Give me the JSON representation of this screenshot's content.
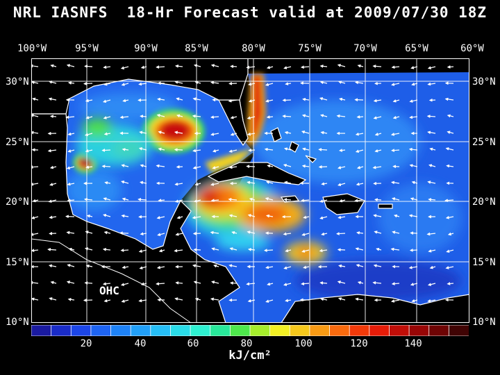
{
  "title": "NRL IASNFS  18-Hr Forecast valid at 2009/07/30 18Z",
  "longitude_labels": [
    "100°W",
    "95°W",
    "90°W",
    "85°W",
    "80°W",
    "75°W",
    "70°W",
    "65°W",
    "60°W"
  ],
  "latitude_labels": [
    "30°N",
    "25°N",
    "20°N",
    "15°N",
    "10°N"
  ],
  "map_label": "OHC",
  "colorbar": {
    "tick_labels": [
      "20",
      "40",
      "60",
      "80",
      "100",
      "120",
      "140"
    ],
    "units": "kJ/cm²",
    "colors": [
      "#1a1aa0",
      "#1a2cc8",
      "#1c46e8",
      "#1e64f2",
      "#1e82f6",
      "#22a0f8",
      "#26bef6",
      "#2adce8",
      "#2ef0d0",
      "#28e89a",
      "#4ee84c",
      "#a6ee2c",
      "#f2f024",
      "#f6c81c",
      "#f89a14",
      "#f86a0e",
      "#f23a0a",
      "#e61c08",
      "#c00e08",
      "#980606",
      "#6e0404",
      "#400404"
    ]
  },
  "colors": {
    "land": "#000000",
    "water_background": "#1e64f0",
    "warm_core": "#e02010",
    "coast": "#ffffff",
    "contour": "#a0a0a0"
  }
}
